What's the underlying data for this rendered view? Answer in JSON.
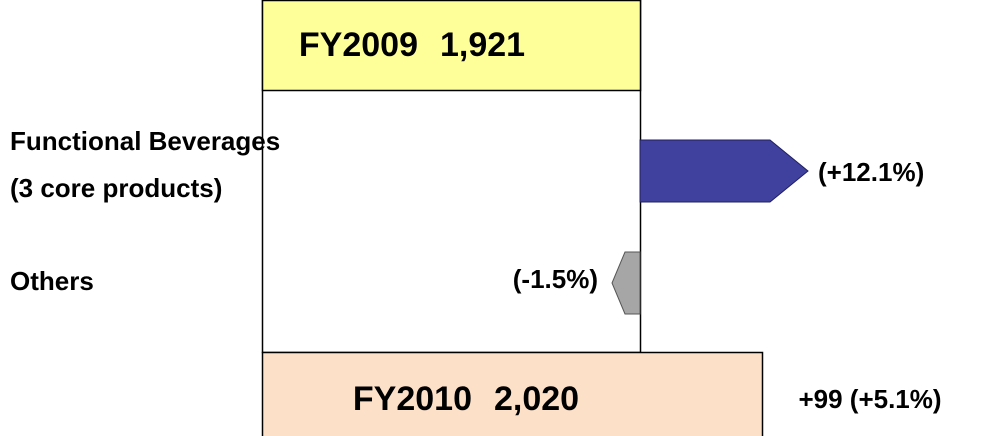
{
  "start": {
    "label": "FY2009",
    "value": "1,921"
  },
  "end": {
    "label": "FY2010",
    "value": "2,020"
  },
  "change": "+99 (+5.1%)",
  "items": [
    {
      "label": [
        "Functional Beverages",
        "(3 core products)"
      ],
      "change": "(+12.1%)"
    },
    {
      "label": [
        "Others"
      ],
      "change": "(-1.5%)"
    }
  ]
}
